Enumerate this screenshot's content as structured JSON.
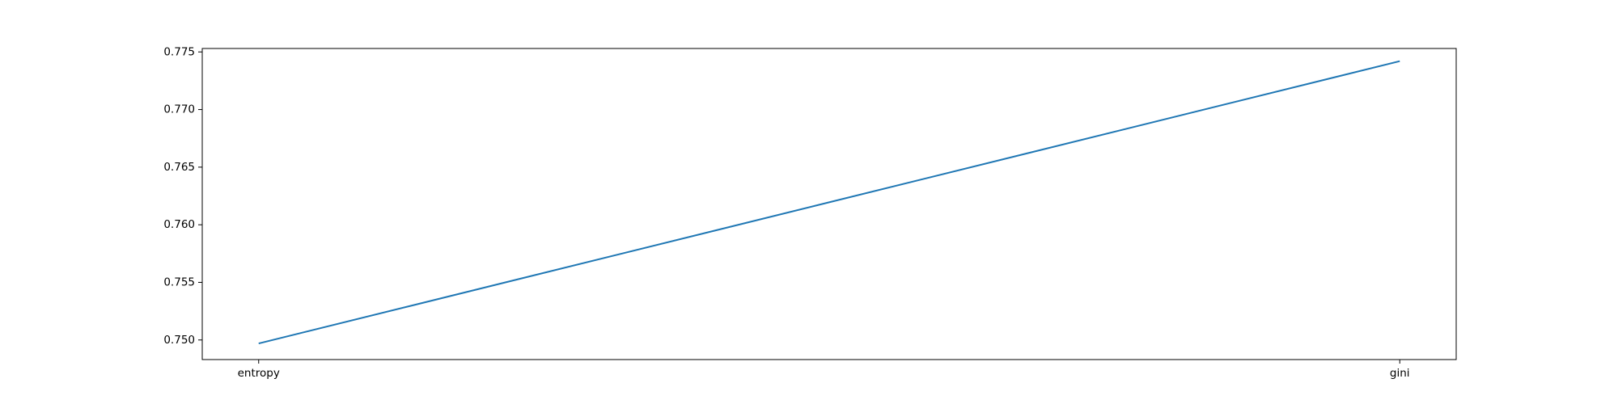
{
  "chart_data": {
    "type": "line",
    "categories": [
      "entropy",
      "gini"
    ],
    "series": [
      {
        "values": [
          0.7497,
          0.7742
        ],
        "color": "#1f77b4"
      }
    ],
    "yticks": [
      0.75,
      0.755,
      0.76,
      0.765,
      0.77,
      0.775
    ],
    "ytick_labels": [
      "0.750",
      "0.755",
      "0.760",
      "0.765",
      "0.770",
      "0.775"
    ],
    "ylim": [
      0.7483,
      0.7753
    ],
    "grid": false,
    "legend": "none"
  }
}
